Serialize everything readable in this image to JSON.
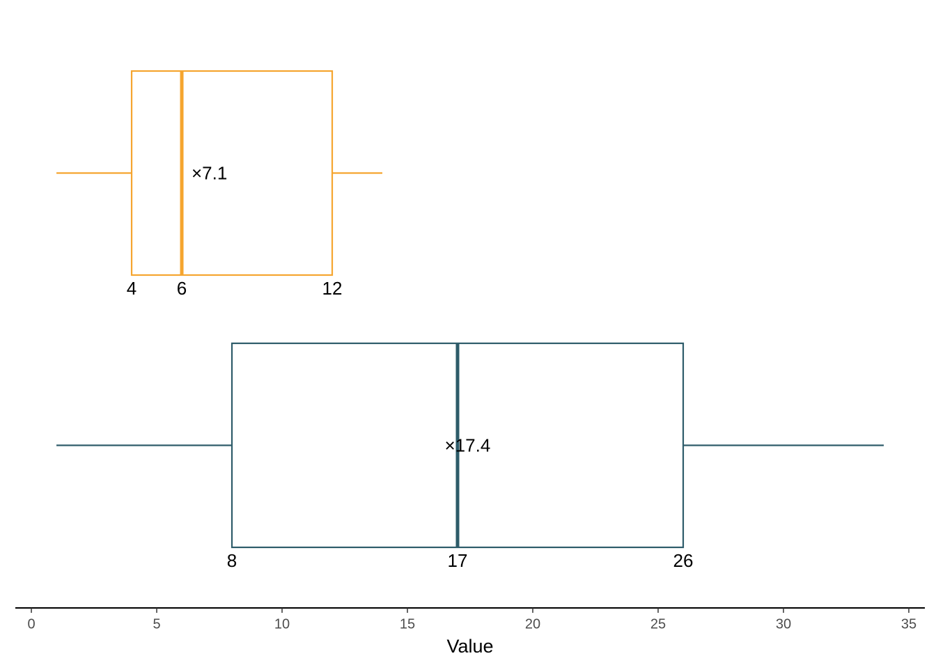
{
  "chart_data": {
    "type": "boxplot",
    "orientation": "horizontal",
    "x_label": "Value",
    "xlim": [
      -0.64,
      35.64
    ],
    "xticks": [
      0,
      5,
      10,
      15,
      20,
      25,
      30,
      35
    ],
    "series": [
      {
        "color": "#f5a52f",
        "min": 1,
        "q1": 4,
        "median": 6,
        "q3": 12,
        "max": 14,
        "mean": 7.1,
        "mean_label": "×7.1"
      },
      {
        "color": "#2e5c6a",
        "min": 1,
        "q1": 8,
        "median": 17,
        "q3": 26,
        "max": 34,
        "mean": 17.4,
        "mean_label": "×17.4"
      }
    ]
  }
}
